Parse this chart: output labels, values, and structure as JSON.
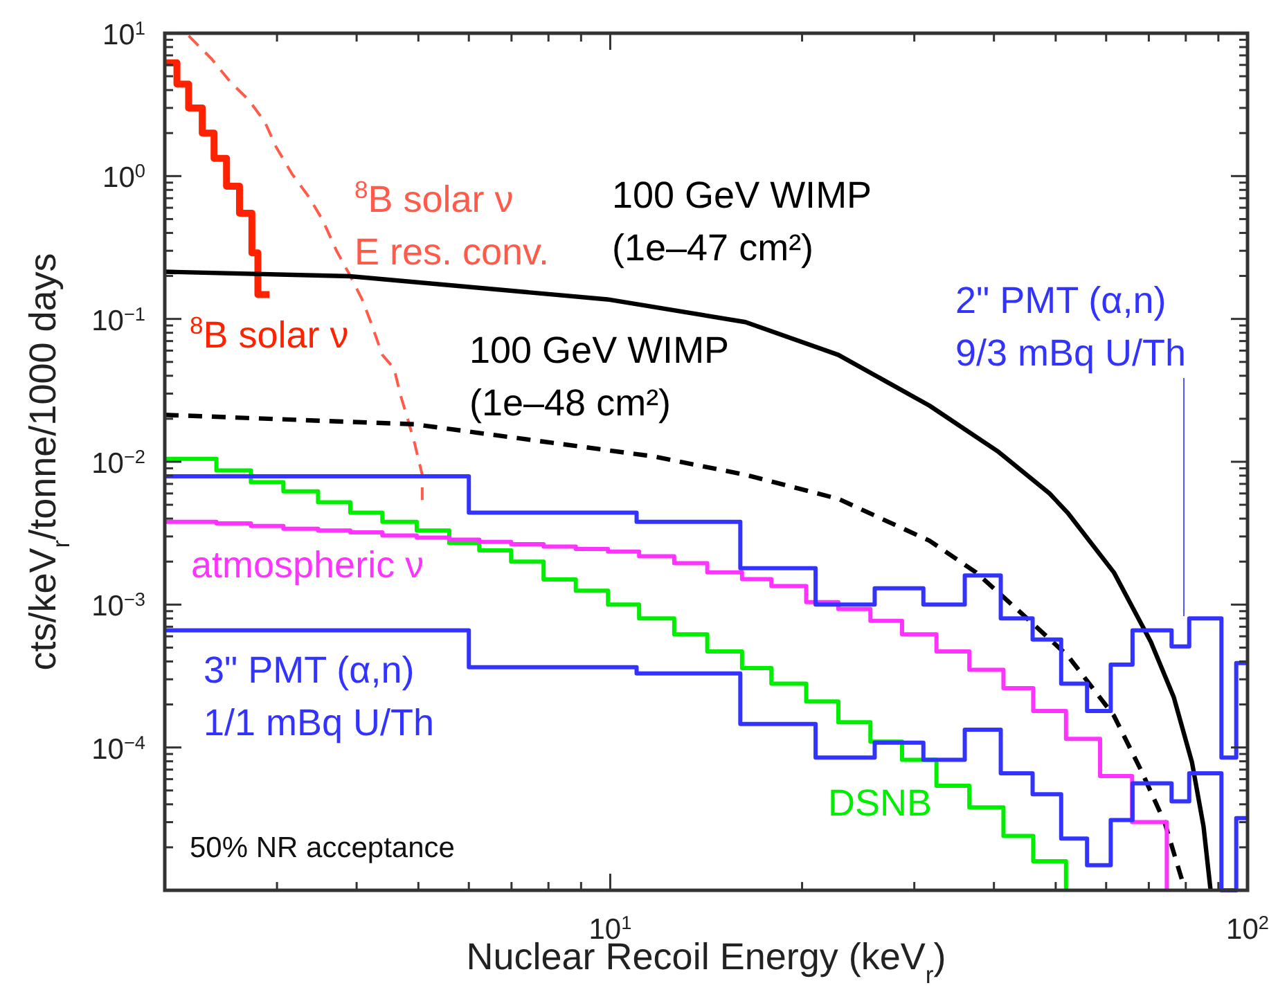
{
  "chart_data": {
    "type": "line",
    "xlabel": "Nuclear Recoil Energy (keV$_{r}$)",
    "ylabel": "cts/keV$_{r}$/tonne/1000 days",
    "log": "xy",
    "grid": false,
    "xlim": [
      2,
      100
    ],
    "ylim": [
      1e-05,
      10
    ],
    "xticks": [
      {
        "value": 3,
        "label": null
      },
      {
        "value": 4,
        "label": null
      },
      {
        "value": 5,
        "label": null
      },
      {
        "value": 6,
        "label": null
      },
      {
        "value": 7,
        "label": null
      },
      {
        "value": 8,
        "label": null
      },
      {
        "value": 9,
        "label": null
      },
      {
        "value": 10,
        "label": "10$^{1}$"
      },
      {
        "value": 20,
        "label": null
      },
      {
        "value": 30,
        "label": null
      },
      {
        "value": 40,
        "label": null
      },
      {
        "value": 50,
        "label": null
      },
      {
        "value": 60,
        "label": null
      },
      {
        "value": 70,
        "label": null
      },
      {
        "value": 80,
        "label": null
      },
      {
        "value": 90,
        "label": null
      },
      {
        "value": 100,
        "label": "10$^{2}$"
      }
    ],
    "yticks": [
      {
        "value": 2e-05,
        "label": null
      },
      {
        "value": 3e-05,
        "label": null
      },
      {
        "value": 4e-05,
        "label": null
      },
      {
        "value": 5e-05,
        "label": null
      },
      {
        "value": 6e-05,
        "label": null
      },
      {
        "value": 7e-05,
        "label": null
      },
      {
        "value": 8e-05,
        "label": null
      },
      {
        "value": 9e-05,
        "label": null
      },
      {
        "value": 0.0001,
        "label": "10$^{−4}$"
      },
      {
        "value": 0.0002,
        "label": null
      },
      {
        "value": 0.0003,
        "label": null
      },
      {
        "value": 0.0004,
        "label": null
      },
      {
        "value": 0.0005,
        "label": null
      },
      {
        "value": 0.0006,
        "label": null
      },
      {
        "value": 0.0007,
        "label": null
      },
      {
        "value": 0.0008,
        "label": null
      },
      {
        "value": 0.0009,
        "label": null
      },
      {
        "value": 0.001,
        "label": "10$^{−3}$"
      },
      {
        "value": 0.002,
        "label": null
      },
      {
        "value": 0.003,
        "label": null
      },
      {
        "value": 0.004,
        "label": null
      },
      {
        "value": 0.005,
        "label": null
      },
      {
        "value": 0.006,
        "label": null
      },
      {
        "value": 0.007,
        "label": null
      },
      {
        "value": 0.008,
        "label": null
      },
      {
        "value": 0.009,
        "label": null
      },
      {
        "value": 0.01,
        "label": "10$^{−2}$"
      },
      {
        "value": 0.02,
        "label": null
      },
      {
        "value": 0.03,
        "label": null
      },
      {
        "value": 0.04,
        "label": null
      },
      {
        "value": 0.05,
        "label": null
      },
      {
        "value": 0.06,
        "label": null
      },
      {
        "value": 0.07,
        "label": null
      },
      {
        "value": 0.08,
        "label": null
      },
      {
        "value": 0.09,
        "label": null
      },
      {
        "value": 0.1,
        "label": "10$^{−1}$"
      },
      {
        "value": 0.2,
        "label": null
      },
      {
        "value": 0.3,
        "label": null
      },
      {
        "value": 0.4,
        "label": null
      },
      {
        "value": 0.5,
        "label": null
      },
      {
        "value": 0.6,
        "label": null
      },
      {
        "value": 0.7,
        "label": null
      },
      {
        "value": 0.8,
        "label": null
      },
      {
        "value": 0.9,
        "label": null
      },
      {
        "value": 1,
        "label": "10$^{0}$"
      },
      {
        "value": 2,
        "label": null
      },
      {
        "value": 3,
        "label": null
      },
      {
        "value": 4,
        "label": null
      },
      {
        "value": 5,
        "label": null
      },
      {
        "value": 6,
        "label": null
      },
      {
        "value": 7,
        "label": null
      },
      {
        "value": 8,
        "label": null
      },
      {
        "value": 9,
        "label": null
      },
      {
        "value": 10,
        "label": "10$^{1}$"
      }
    ],
    "annotations": [
      "50% NR acceptance"
    ],
    "series": [
      {
        "name": "$^{8}$B solar ν",
        "type": "step",
        "color": "#ff2200",
        "x": [
          2.0,
          2.09,
          2.18,
          2.29,
          2.39,
          2.5,
          2.62,
          2.74,
          2.8,
          2.92
        ],
        "values": [
          6.2,
          4.4,
          3.0,
          2.0,
          1.33,
          0.85,
          0.55,
          0.29,
          0.148,
          0.148
        ]
      },
      {
        "name": "$^{8}$B solar ν\nE res. conv.",
        "line_style": "dashed",
        "color": "#ff5a4a",
        "x": [
          2.18,
          2.37,
          2.53,
          2.71,
          2.87,
          2.99,
          3.17,
          3.37,
          3.54,
          3.72,
          3.91,
          4.08,
          4.21,
          4.39,
          4.58,
          4.69,
          4.81,
          4.93,
          5.07,
          5.07
        ],
        "values": [
          9.6,
          6.6,
          4.6,
          3.4,
          2.4,
          1.6,
          1.03,
          0.71,
          0.49,
          0.3,
          0.2,
          0.137,
          0.095,
          0.056,
          0.045,
          0.029,
          0.02,
          0.0136,
          0.0081,
          0.0054
        ]
      },
      {
        "name": "100 GeV WIMP\n(1e–47 cm²)",
        "color": "#000000",
        "x": [
          2.0,
          3.9,
          9.9,
          16.3,
          22.8,
          31.7,
          40.7,
          48.9,
          52.2,
          61.7,
          70.5,
          76.6,
          81.8,
          85.3,
          87.5
        ],
        "values": [
          0.214,
          0.199,
          0.137,
          0.095,
          0.056,
          0.0247,
          0.0117,
          0.006,
          0.0044,
          0.00168,
          0.00055,
          0.000225,
          7.9e-05,
          2.8e-05,
          1e-05
        ]
      },
      {
        "name": "100 GeV WIMP\n(1e–48 cm²)",
        "line_style": "dashed",
        "color": "#000000",
        "x": [
          2.0,
          4.93,
          11.7,
          16.3,
          22.8,
          31.7,
          37.5,
          44.3,
          52.2,
          61.7,
          68.2,
          74.1,
          79.3
        ],
        "values": [
          0.0213,
          0.0183,
          0.0109,
          0.0081,
          0.0055,
          0.0028,
          0.00168,
          0.00086,
          0.00044,
          0.000167,
          6.8e-05,
          3e-05,
          1.1e-05
        ]
      },
      {
        "name": "DSNB",
        "type": "step",
        "color": "#00ee00",
        "x": [
          2.0,
          2.41,
          2.73,
          3.07,
          3.48,
          3.91,
          4.39,
          4.97,
          5.59,
          6.23,
          6.99,
          7.86,
          8.83,
          9.92,
          11.1,
          12.6,
          14.2,
          16.1,
          17.9,
          20.3,
          22.8,
          25.6,
          28.7,
          32.5,
          36.6,
          41.4,
          46.1,
          51.9
        ],
        "values": [
          0.0105,
          0.0087,
          0.0072,
          0.0062,
          0.0052,
          0.0044,
          0.0038,
          0.0033,
          0.0027,
          0.0024,
          0.002,
          0.0015,
          0.00125,
          0.001,
          0.0008,
          0.00062,
          0.00047,
          0.00036,
          0.00028,
          0.00021,
          0.00015,
          0.00011,
          8.2e-05,
          5.4e-05,
          3.8e-05,
          2.4e-05,
          1.6e-05,
          1e-05
        ]
      },
      {
        "name": "atmospheric ν",
        "type": "step",
        "color": "#ff33ff",
        "x": [
          2.0,
          2.41,
          2.73,
          3.07,
          3.48,
          3.91,
          4.39,
          4.97,
          5.59,
          6.23,
          6.99,
          7.86,
          8.83,
          9.92,
          11.1,
          12.6,
          14.2,
          16.1,
          17.9,
          20.3,
          22.8,
          25.6,
          28.7,
          32.5,
          36.6,
          41.4,
          46.1,
          51.9,
          58.7,
          65.9,
          74.7
        ],
        "values": [
          0.0038,
          0.0037,
          0.00355,
          0.0034,
          0.0033,
          0.0032,
          0.00305,
          0.00295,
          0.00285,
          0.00275,
          0.00265,
          0.00255,
          0.00245,
          0.00235,
          0.00218,
          0.00195,
          0.00168,
          0.00151,
          0.00135,
          0.00104,
          0.00093,
          0.00077,
          0.00062,
          0.00047,
          0.00035,
          0.00026,
          0.00018,
          0.000115,
          6.3e-05,
          3e-05,
          1e-05
        ]
      },
      {
        "name": "2\" PMT (α,n)\n9/3 mBq U/Th",
        "type": "step",
        "color": "#3333ff",
        "x": [
          2,
          6,
          11,
          16,
          21,
          26,
          31,
          36,
          41,
          46,
          51,
          56,
          61,
          66,
          76,
          81,
          91,
          96,
          100
        ],
        "values": [
          0.0079,
          0.0044,
          0.0038,
          0.0018,
          0.001,
          0.0013,
          0.001,
          0.0016,
          0.0008,
          0.00057,
          0.00028,
          0.00018,
          0.00038,
          0.00066,
          0.00051,
          0.0008,
          8.5e-05,
          0.00039,
          0.00039
        ]
      },
      {
        "name": "3\" PMT (α,n)\n1/1 mBq U/Th",
        "type": "step",
        "color": "#3333ff",
        "x": [
          2,
          6,
          11,
          16,
          21,
          26,
          31,
          36,
          41,
          46,
          51,
          56,
          61,
          66,
          76,
          81,
          91,
          96,
          100
        ],
        "values": [
          0.00066,
          0.000365,
          0.00033,
          0.000146,
          8.5e-05,
          0.000108,
          8.2e-05,
          0.000133,
          6.6e-05,
          4.7e-05,
          2.3e-05,
          1.5e-05,
          3.1e-05,
          5.6e-05,
          4.2e-05,
          6.6e-05,
          1e-05,
          3.2e-05,
          3.2e-05
        ]
      }
    ]
  }
}
